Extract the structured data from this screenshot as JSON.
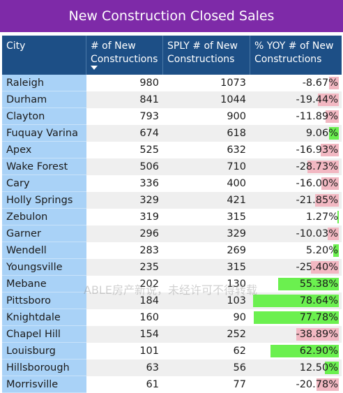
{
  "title": "New Construction Closed Sales",
  "watermark": "ABLE房产新说，未经许可不得转载",
  "colors": {
    "title_bg": "#7e2aa8",
    "header_bg": "#1d4f86",
    "city_bg": "#a9d2f7",
    "positive_bar": "#6bf04f",
    "negative_bar": "#f2b8c2"
  },
  "chart_data": {
    "type": "table",
    "columns": [
      "City",
      "# of New Constructions",
      "SPLY # of New Constructions",
      "% YOY # of New Constructions"
    ],
    "sorted_by": "# of New Constructions",
    "sort_order": "descending",
    "bar_column": "% YOY # of New Constructions",
    "bar_scale_max": 78.64,
    "rows": [
      {
        "city": "Raleigh",
        "new": "980",
        "sply": "1073",
        "yoy_text": "-8.67%",
        "yoy": -8.67
      },
      {
        "city": "Durham",
        "new": "841",
        "sply": "1044",
        "yoy_text": "-19.44%",
        "yoy": -19.44
      },
      {
        "city": "Clayton",
        "new": "793",
        "sply": "900",
        "yoy_text": "-11.89%",
        "yoy": -11.89
      },
      {
        "city": "Fuquay Varina",
        "new": "674",
        "sply": "618",
        "yoy_text": "9.06%",
        "yoy": 9.06
      },
      {
        "city": "Apex",
        "new": "525",
        "sply": "632",
        "yoy_text": "-16.93%",
        "yoy": -16.93
      },
      {
        "city": "Wake Forest",
        "new": "506",
        "sply": "710",
        "yoy_text": "-28.73%",
        "yoy": -28.73
      },
      {
        "city": "Cary",
        "new": "336",
        "sply": "400",
        "yoy_text": "-16.00%",
        "yoy": -16.0
      },
      {
        "city": "Holly Springs",
        "new": "329",
        "sply": "421",
        "yoy_text": "-21.85%",
        "yoy": -21.85
      },
      {
        "city": "Zebulon",
        "new": "319",
        "sply": "315",
        "yoy_text": "1.27%",
        "yoy": 1.27
      },
      {
        "city": "Garner",
        "new": "296",
        "sply": "329",
        "yoy_text": "-10.03%",
        "yoy": -10.03
      },
      {
        "city": "Wendell",
        "new": "283",
        "sply": "269",
        "yoy_text": "5.20%",
        "yoy": 5.2
      },
      {
        "city": "Youngsville",
        "new": "235",
        "sply": "315",
        "yoy_text": "-25.40%",
        "yoy": -25.4
      },
      {
        "city": "Mebane",
        "new": "202",
        "sply": "130",
        "yoy_text": "55.38%",
        "yoy": 55.38
      },
      {
        "city": "Pittsboro",
        "new": "184",
        "sply": "103",
        "yoy_text": "78.64%",
        "yoy": 78.64
      },
      {
        "city": "Knightdale",
        "new": "160",
        "sply": "90",
        "yoy_text": "77.78%",
        "yoy": 77.78
      },
      {
        "city": "Chapel Hill",
        "new": "154",
        "sply": "252",
        "yoy_text": "-38.89%",
        "yoy": -38.89
      },
      {
        "city": "Louisburg",
        "new": "101",
        "sply": "62",
        "yoy_text": "62.90%",
        "yoy": 62.9
      },
      {
        "city": "Hillsborough",
        "new": "63",
        "sply": "56",
        "yoy_text": "12.50%",
        "yoy": 12.5
      },
      {
        "city": "Morrisville",
        "new": "61",
        "sply": "77",
        "yoy_text": "-20.78%",
        "yoy": -20.78
      }
    ]
  },
  "header": {
    "city": "City",
    "new_line1": "# of New",
    "new_line2": "Constructions",
    "sply_line1": "SPLY # of New",
    "sply_line2": "Constructions",
    "yoy_line1": "% YOY # of New",
    "yoy_line2": "Constructions"
  }
}
